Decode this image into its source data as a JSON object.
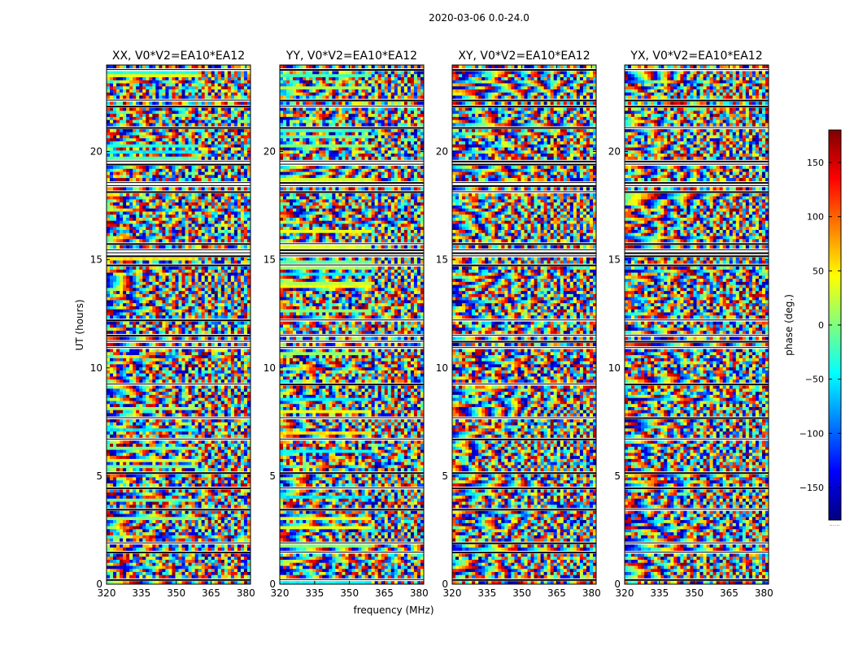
{
  "chart_data": {
    "type": "heatmap",
    "suptitle": "2020-03-06 0.0-24.0",
    "ylabel": "UT (hours)",
    "xlabel": "frequency (MHz)",
    "xlim": [
      320,
      382
    ],
    "xticks": [
      320,
      335,
      350,
      365,
      380
    ],
    "ylim": [
      0,
      24
    ],
    "yticks": [
      0,
      5,
      10,
      15,
      20
    ],
    "colorbar": {
      "label": "phase (deg.)",
      "range": [
        -180,
        180
      ],
      "ticks": [
        150,
        100,
        50,
        0,
        -50,
        -100,
        -150
      ],
      "tick_labels": [
        "150",
        "100",
        "50",
        "0",
        "−50",
        "−100",
        "−150"
      ],
      "colormap": "jet",
      "colors": [
        "#00007f",
        "#0000ff",
        "#007fff",
        "#00ffff",
        "#7fff7f",
        "#ffff00",
        "#ff7f00",
        "#ff0000",
        "#7f0000"
      ],
      "footer": "......"
    },
    "panels": [
      {
        "title": "XX, V0*V2=EA10*EA12"
      },
      {
        "title": "YY, V0*V2=EA10*EA12"
      },
      {
        "title": "XY, V0*V2=EA10*EA12"
      },
      {
        "title": "YX, V0*V2=EA10*EA12"
      }
    ]
  }
}
